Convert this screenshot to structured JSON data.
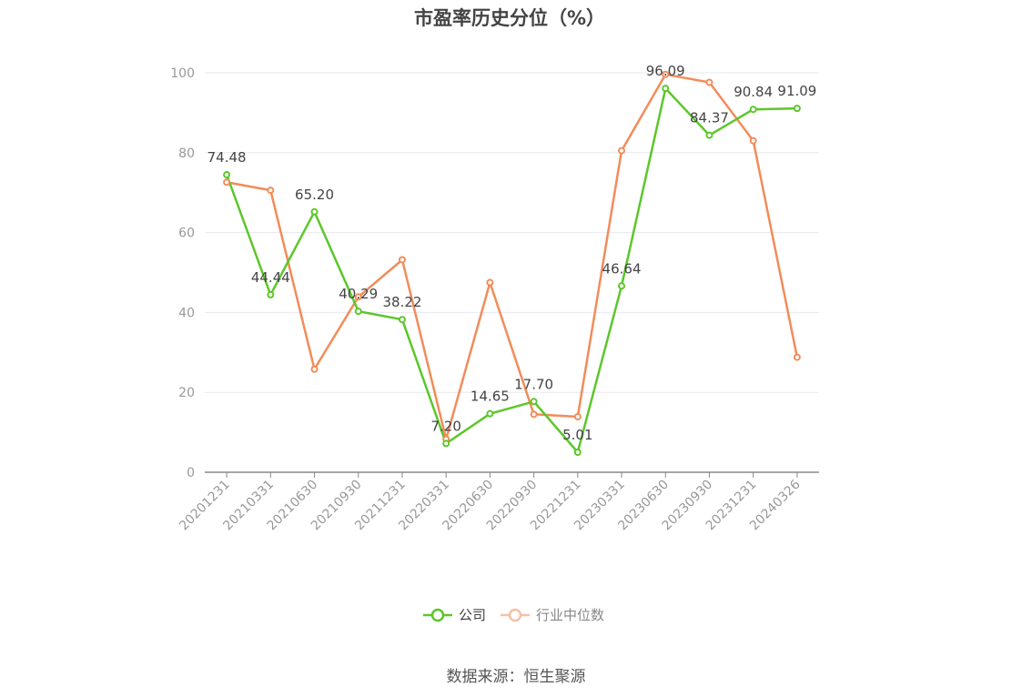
{
  "chart_data": {
    "type": "line",
    "title": "市盈率历史分位（%）",
    "categories": [
      "20201231",
      "20210331",
      "20210630",
      "20210930",
      "20211231",
      "20220331",
      "20220630",
      "20220930",
      "20221231",
      "20230331",
      "20230630",
      "20230930",
      "20231231",
      "20240326"
    ],
    "ylim": [
      0,
      100
    ],
    "yticks": [
      0,
      20,
      40,
      60,
      80,
      100
    ],
    "grid": true,
    "legend_position": "bottom",
    "series": [
      {
        "name": "公司",
        "color": "#5cc72a",
        "values": [
          74.48,
          44.44,
          65.2,
          40.29,
          38.22,
          7.2,
          14.65,
          17.7,
          5.01,
          46.64,
          96.09,
          84.37,
          90.84,
          91.09
        ],
        "labels": [
          "74.48",
          "44.44",
          "65.20",
          "40.29",
          "38.22",
          "7.20",
          "14.65",
          "17.70",
          "5.01",
          "46.64",
          "96.09",
          "84.37",
          "90.84",
          "91.09"
        ]
      },
      {
        "name": "行业中位数",
        "color": "#f28c5a",
        "values": [
          72.6,
          70.6,
          25.8,
          43.9,
          53.2,
          8.3,
          47.5,
          14.5,
          13.9,
          80.5,
          99.6,
          97.6,
          83.0,
          28.8
        ]
      }
    ]
  },
  "source": "数据来源：恒生聚源"
}
